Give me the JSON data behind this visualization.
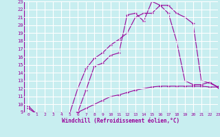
{
  "background_color": "#c8eef0",
  "grid_color": "#ffffff",
  "line_color": "#990099",
  "xlabel": "Windchill (Refroidissement éolien,°C)",
  "xlim": [
    -0.5,
    23
  ],
  "ylim": [
    9,
    23
  ],
  "xticks": [
    0,
    1,
    2,
    3,
    4,
    5,
    6,
    7,
    8,
    9,
    10,
    11,
    12,
    13,
    14,
    15,
    16,
    17,
    18,
    19,
    20,
    21,
    22,
    23
  ],
  "yticks": [
    9,
    10,
    11,
    12,
    13,
    14,
    15,
    16,
    17,
    18,
    19,
    20,
    21,
    22,
    23
  ],
  "curve1_x": [
    0,
    1,
    2,
    3,
    4,
    5,
    6,
    7,
    8,
    9,
    10,
    11,
    12,
    13,
    14,
    15,
    16,
    17,
    18,
    19,
    20,
    21,
    22,
    23
  ],
  "curve1_y": [
    9.8,
    8.8,
    8.8,
    8.8,
    8.8,
    8.8,
    9.0,
    9.5,
    10.0,
    10.5,
    11.0,
    11.2,
    11.5,
    11.8,
    12.0,
    12.2,
    12.3,
    12.3,
    12.3,
    12.3,
    12.3,
    12.3,
    12.2,
    12.2
  ],
  "curve2_x": [
    0,
    1,
    2,
    3,
    4,
    5,
    6,
    7,
    8,
    9,
    10,
    11,
    12,
    13,
    14,
    15,
    16,
    17,
    18,
    19,
    20,
    21,
    22,
    23
  ],
  "curve2_y": [
    9.5,
    8.8,
    8.7,
    8.8,
    8.8,
    8.8,
    12.0,
    14.5,
    15.8,
    16.5,
    17.5,
    18.2,
    19.0,
    21.0,
    21.5,
    21.5,
    22.5,
    22.5,
    21.5,
    21.0,
    20.2,
    13.0,
    12.7,
    12.2
  ],
  "curve3_x": [
    4,
    5,
    6,
    7,
    8,
    9,
    10,
    11,
    12,
    13,
    14,
    15,
    16,
    17,
    18,
    19,
    20,
    21,
    22,
    23
  ],
  "curve3_y": [
    8.8,
    8.8,
    9.0,
    11.8,
    14.8,
    15.2,
    16.2,
    16.5,
    21.3,
    21.5,
    20.5,
    23.0,
    22.5,
    21.5,
    18.0,
    13.0,
    12.5,
    12.5,
    12.8,
    12.2
  ]
}
